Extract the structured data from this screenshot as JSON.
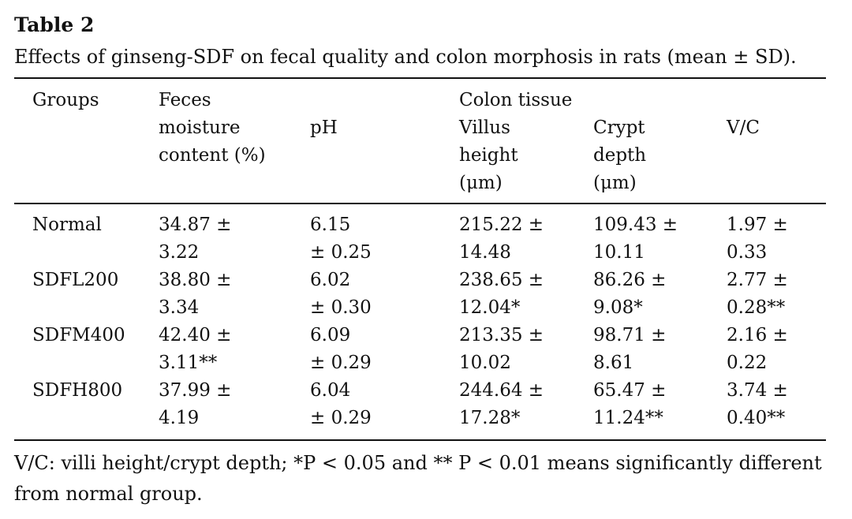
{
  "table": {
    "title": "Table 2",
    "caption": "Effects of ginseng-SDF on fecal quality and colon morphosis in rats (mean ± SD).",
    "header": {
      "groups": "Groups",
      "feces": "Feces",
      "moisture_line1": "moisture",
      "moisture_line2": "content (%)",
      "ph": "pH",
      "colon": "Colon tissue",
      "villus_line1": "Villus",
      "villus_line2": "height",
      "villus_line3": "(μm)",
      "crypt_line1": "Crypt",
      "crypt_line2": "depth",
      "crypt_line3": "(μm)",
      "vc": "V/C"
    },
    "rows": [
      {
        "group": "Normal",
        "moisture": [
          "34.87 ±",
          "3.22"
        ],
        "ph": [
          "6.15",
          "± 0.25"
        ],
        "villus": [
          "215.22 ±",
          "14.48"
        ],
        "crypt": [
          "109.43 ±",
          "10.11"
        ],
        "vc": [
          "1.97 ±",
          "0.33"
        ]
      },
      {
        "group": "SDFL200",
        "moisture": [
          "38.80 ±",
          "3.34"
        ],
        "ph": [
          "6.02",
          "± 0.30"
        ],
        "villus": [
          "238.65 ±",
          "12.04*"
        ],
        "crypt": [
          "86.26 ±",
          "9.08*"
        ],
        "vc": [
          "2.77 ±",
          "0.28**"
        ]
      },
      {
        "group": "SDFM400",
        "moisture": [
          "42.40 ±",
          "3.11**"
        ],
        "ph": [
          "6.09",
          "± 0.29"
        ],
        "villus": [
          "213.35 ±",
          "10.02"
        ],
        "crypt": [
          "98.71 ±",
          "8.61"
        ],
        "vc": [
          "2.16 ±",
          "0.22"
        ]
      },
      {
        "group": "SDFH800",
        "moisture": [
          "37.99 ±",
          "4.19"
        ],
        "ph": [
          "6.04",
          "± 0.29"
        ],
        "villus": [
          "244.64 ±",
          "17.28*"
        ],
        "crypt": [
          "65.47 ±",
          "11.24**"
        ],
        "vc": [
          "3.74 ±",
          "0.40**"
        ]
      }
    ],
    "footnote": "V/C: villi height/crypt depth; *P < 0.05 and ** P < 0.01 means significantly different from normal group."
  }
}
